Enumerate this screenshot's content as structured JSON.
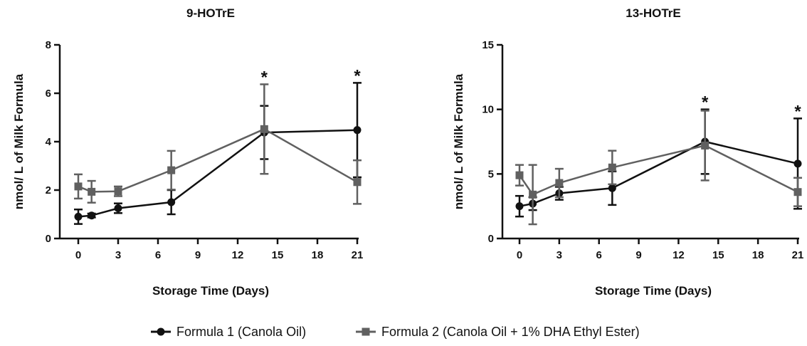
{
  "legend": [
    {
      "label": "Formula 1 (Canola Oil)",
      "color": "#111111",
      "marker": "circle"
    },
    {
      "label": "Formula 2 (Canola Oil + 1% DHA Ethyl Ester)",
      "color": "#606060",
      "marker": "square"
    }
  ],
  "chart_data": [
    {
      "type": "line",
      "title": "9-HOTrE",
      "xlabel": "Storage Time (Days)",
      "ylabel": "nmol/ L of Milk Formula",
      "xlim": [
        -1,
        21
      ],
      "ylim": [
        0,
        8
      ],
      "xticks": [
        0,
        3,
        6,
        9,
        12,
        15,
        18,
        21
      ],
      "yticks": [
        0,
        2,
        4,
        6,
        8
      ],
      "x": [
        0,
        1,
        3,
        7,
        14,
        21
      ],
      "series": [
        {
          "name": "Formula 1 (Canola Oil)",
          "color": "#111111",
          "marker": "circle",
          "values": [
            0.9,
            0.95,
            1.25,
            1.5,
            4.38,
            4.48
          ],
          "error": [
            0.3,
            0.08,
            0.2,
            0.5,
            1.1,
            1.95
          ]
        },
        {
          "name": "Formula 2 (Canola Oil + 1% DHA Ethyl Ester)",
          "color": "#606060",
          "marker": "square",
          "values": [
            2.15,
            1.93,
            1.95,
            2.82,
            4.52,
            2.33
          ],
          "error": [
            0.5,
            0.45,
            0.2,
            0.8,
            1.85,
            0.9
          ]
        }
      ],
      "annotations": [
        {
          "x": 14,
          "text": "*"
        },
        {
          "x": 21,
          "text": "*"
        }
      ]
    },
    {
      "type": "line",
      "title": "13-HOTrE",
      "xlabel": "Storage Time (Days)",
      "ylabel": "nmol/ L of Milk Formula",
      "xlim": [
        -1,
        21
      ],
      "ylim": [
        0,
        15
      ],
      "xticks": [
        0,
        3,
        6,
        9,
        12,
        15,
        18,
        21
      ],
      "yticks": [
        0,
        5,
        10,
        15
      ],
      "x": [
        0,
        1,
        3,
        7,
        14,
        21
      ],
      "series": [
        {
          "name": "Formula 1 (Canola Oil)",
          "color": "#111111",
          "marker": "circle",
          "values": [
            2.5,
            2.7,
            3.5,
            3.9,
            7.5,
            5.8
          ],
          "error": [
            0.8,
            0.5,
            0.5,
            1.3,
            2.5,
            3.5
          ]
        },
        {
          "name": "Formula 2 (Canola Oil + 1% DHA Ethyl Ester)",
          "color": "#606060",
          "marker": "square",
          "values": [
            4.9,
            3.4,
            4.3,
            5.5,
            7.2,
            3.6
          ],
          "error": [
            0.8,
            2.3,
            1.1,
            1.3,
            2.7,
            1.1
          ]
        }
      ],
      "annotations": [
        {
          "x": 14,
          "text": "*"
        },
        {
          "x": 21,
          "text": "*"
        }
      ]
    }
  ]
}
